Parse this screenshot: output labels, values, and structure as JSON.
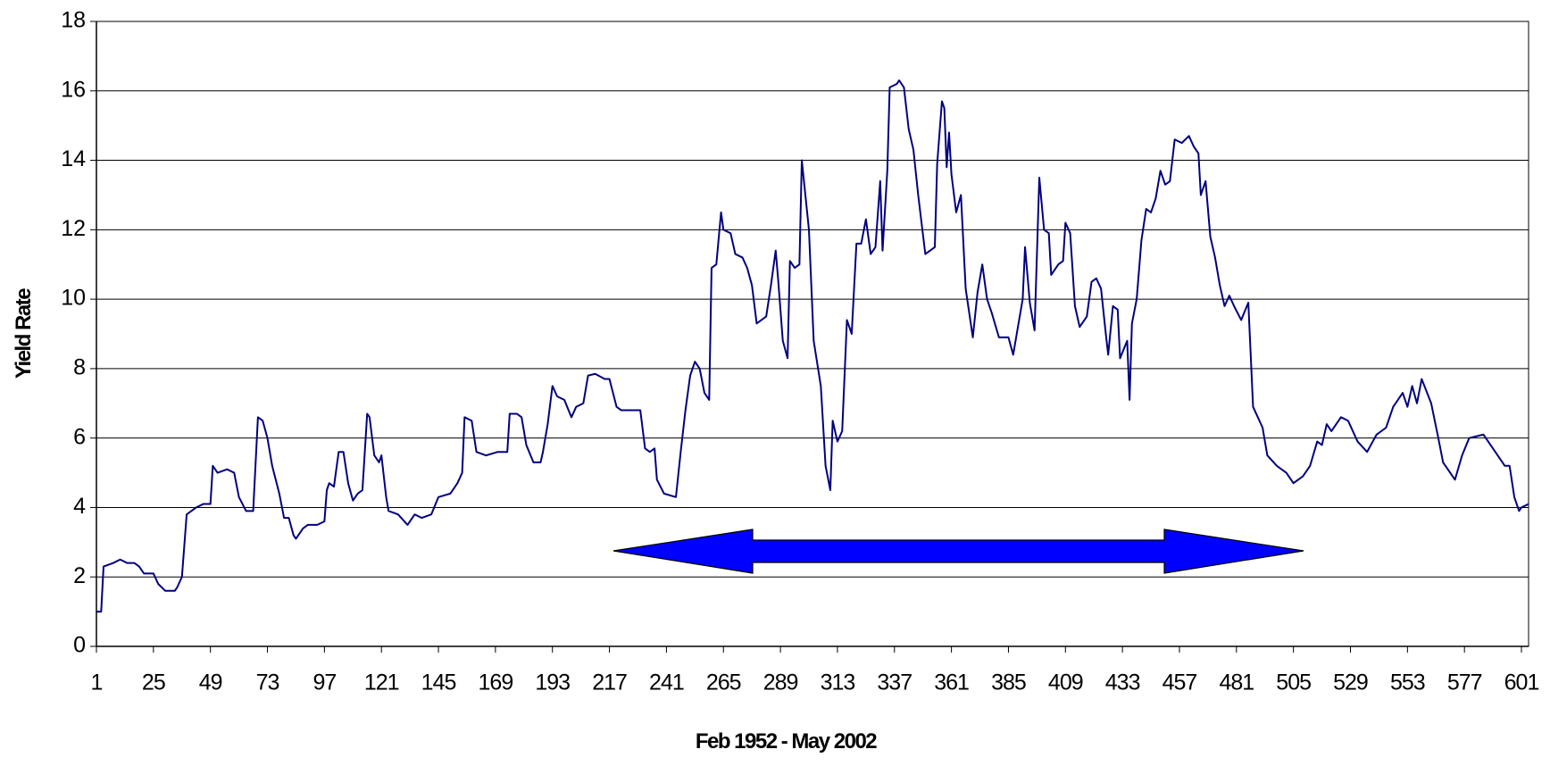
{
  "chart_data": {
    "type": "line",
    "xlabel": "Feb 1952 - May 2002",
    "ylabel": "Yield Rate",
    "color": "#000080",
    "grid": true,
    "xlim": [
      1,
      604
    ],
    "ylim": [
      0,
      18
    ],
    "xticks": [
      1,
      25,
      49,
      73,
      97,
      121,
      145,
      169,
      193,
      217,
      241,
      265,
      289,
      313,
      337,
      361,
      385,
      409,
      433,
      457,
      481,
      505,
      529,
      553,
      577,
      601
    ],
    "yticks": [
      0,
      2,
      4,
      6,
      8,
      10,
      12,
      14,
      16,
      18
    ],
    "x": [
      1,
      3,
      4,
      8,
      11,
      14,
      17,
      19,
      21,
      25,
      27,
      30,
      34,
      35,
      37,
      39,
      43,
      46,
      49,
      50,
      52,
      56,
      59,
      61,
      64,
      67,
      69,
      71,
      73,
      75,
      78,
      80,
      82,
      84,
      85,
      88,
      90,
      94,
      97,
      98,
      99,
      101,
      103,
      105,
      107,
      109,
      111,
      113,
      115,
      116,
      118,
      120,
      121,
      123,
      124,
      128,
      132,
      135,
      138,
      142,
      145,
      150,
      153,
      155,
      156,
      159,
      161,
      165,
      170,
      174,
      175,
      178,
      180,
      182,
      185,
      188,
      189,
      191,
      193,
      195,
      198,
      201,
      203,
      206,
      208,
      211,
      215,
      217,
      220,
      222,
      230,
      232,
      234,
      236,
      237,
      240,
      245,
      247,
      249,
      251,
      253,
      255,
      257,
      259,
      260,
      262,
      264,
      265,
      268,
      270,
      273,
      275,
      277,
      279,
      283,
      285,
      287,
      288,
      290,
      292,
      293,
      295,
      297,
      298,
      301,
      303,
      306,
      308,
      310,
      311,
      313,
      315,
      317,
      319,
      321,
      323,
      325,
      327,
      329,
      331,
      332,
      334,
      335,
      338,
      339,
      341,
      343,
      345,
      347,
      350,
      354,
      355,
      357,
      358,
      359,
      360,
      361,
      363,
      365,
      367,
      370,
      372,
      374,
      376,
      378,
      381,
      385,
      387,
      391,
      392,
      394,
      396,
      398,
      400,
      402,
      403,
      406,
      408,
      409,
      411,
      413,
      415,
      418,
      420,
      422,
      424,
      426,
      427,
      429,
      431,
      432,
      435,
      436,
      437,
      439,
      441,
      443,
      445,
      447,
      449,
      451,
      453,
      455,
      458,
      461,
      463,
      465,
      466,
      468,
      470,
      472,
      474,
      476,
      478,
      480,
      483,
      486,
      488,
      492,
      494,
      498,
      502,
      505,
      509,
      512,
      515,
      517,
      519,
      521,
      525,
      528,
      532,
      536,
      540,
      544,
      547,
      551,
      553,
      555,
      557,
      559,
      563,
      566,
      568,
      573,
      576,
      579,
      585,
      590,
      594,
      596,
      598,
      600,
      601,
      604
    ],
    "values": [
      1.0,
      1.0,
      2.3,
      2.4,
      2.5,
      2.4,
      2.4,
      2.3,
      2.1,
      2.1,
      1.8,
      1.6,
      1.6,
      1.7,
      2.0,
      3.8,
      4.0,
      4.1,
      4.1,
      5.2,
      5.0,
      5.1,
      5.0,
      4.3,
      3.9,
      3.9,
      6.6,
      6.5,
      6.0,
      5.2,
      4.4,
      3.7,
      3.7,
      3.2,
      3.1,
      3.4,
      3.5,
      3.5,
      3.6,
      4.5,
      4.7,
      4.6,
      5.6,
      5.6,
      4.7,
      4.2,
      4.4,
      4.5,
      6.7,
      6.6,
      5.5,
      5.3,
      5.5,
      4.3,
      3.9,
      3.8,
      3.5,
      3.8,
      3.7,
      3.8,
      4.3,
      4.4,
      4.7,
      5.0,
      6.6,
      6.5,
      5.6,
      5.5,
      5.6,
      5.6,
      6.7,
      6.7,
      6.6,
      5.8,
      5.3,
      5.3,
      5.6,
      6.4,
      7.5,
      7.2,
      7.1,
      6.6,
      6.9,
      7.0,
      7.8,
      7.85,
      7.7,
      7.7,
      6.9,
      6.8,
      6.8,
      5.7,
      5.6,
      5.7,
      4.8,
      4.4,
      4.3,
      5.6,
      6.8,
      7.8,
      8.2,
      8.0,
      7.3,
      7.1,
      10.9,
      11.0,
      12.5,
      12.0,
      11.9,
      11.3,
      11.2,
      10.9,
      10.4,
      9.3,
      9.5,
      10.4,
      11.4,
      10.6,
      8.8,
      8.3,
      11.1,
      10.9,
      11.0,
      14.0,
      12.0,
      8.8,
      7.5,
      5.2,
      4.5,
      6.5,
      5.9,
      6.2,
      9.4,
      9.0,
      11.6,
      11.6,
      12.3,
      11.3,
      11.5,
      13.4,
      11.4,
      13.7,
      16.1,
      16.2,
      16.3,
      16.1,
      14.9,
      14.3,
      13.0,
      11.3,
      11.5,
      13.9,
      15.7,
      15.5,
      13.8,
      14.8,
      13.6,
      12.5,
      13.0,
      10.3,
      8.9,
      10.2,
      11.0,
      10.0,
      9.6,
      8.9,
      8.9,
      8.4,
      10.0,
      11.5,
      9.9,
      9.1,
      13.5,
      12.0,
      11.9,
      10.7,
      11.0,
      11.1,
      12.2,
      11.9,
      9.8,
      9.2,
      9.5,
      10.5,
      10.6,
      10.3,
      9.0,
      8.4,
      9.8,
      9.7,
      8.3,
      8.8,
      7.1,
      9.3,
      10.0,
      11.7,
      12.6,
      12.5,
      12.9,
      13.7,
      13.3,
      13.4,
      14.6,
      14.5,
      14.7,
      14.4,
      14.2,
      13.0,
      13.4,
      11.8,
      11.2,
      10.4,
      9.8,
      10.1,
      9.8,
      9.4,
      9.9,
      6.9,
      6.3,
      5.5,
      5.2,
      5.0,
      4.7,
      4.9,
      5.2,
      5.9,
      5.8,
      6.4,
      6.2,
      6.6,
      6.5,
      5.9,
      5.6,
      6.1,
      6.3,
      6.9,
      7.3,
      6.9,
      7.5,
      7.0,
      7.7,
      7.0,
      6.0,
      5.3,
      4.8,
      5.5,
      6.0,
      6.1,
      5.6,
      5.2,
      5.2,
      4.3,
      3.9,
      4.0,
      4.1
    ]
  }
}
